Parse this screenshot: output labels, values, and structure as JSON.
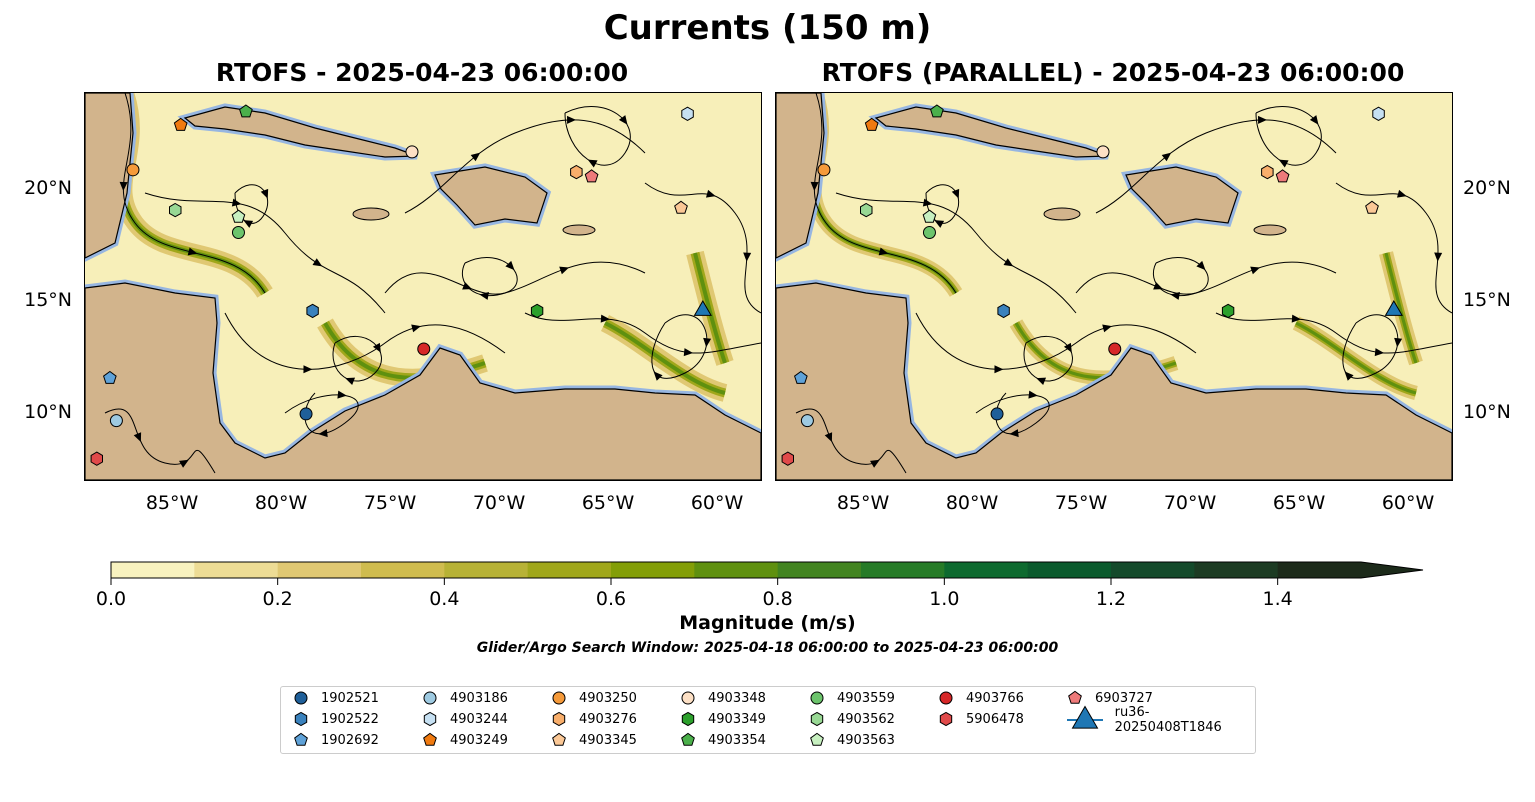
{
  "title": "Currents (150 m)",
  "panels": [
    {
      "title": "RTOFS - 2025-04-23 06:00:00"
    },
    {
      "title": "RTOFS (PARALLEL) - 2025-04-23 06:00:00"
    }
  ],
  "map": {
    "lon_range": [
      -89.04,
      -58.03
    ],
    "lat_range": [
      7.05,
      24.33
    ],
    "lon_ticks": [
      {
        "v": -85,
        "label": "85°W"
      },
      {
        "v": -80,
        "label": "80°W"
      },
      {
        "v": -75,
        "label": "75°W"
      },
      {
        "v": -70,
        "label": "70°W"
      },
      {
        "v": -65,
        "label": "65°W"
      },
      {
        "v": -60,
        "label": "60°W"
      }
    ],
    "lat_ticks": [
      {
        "v": 20,
        "label": "20°N"
      },
      {
        "v": 15,
        "label": "15°N"
      },
      {
        "v": 10,
        "label": "10°N"
      }
    ],
    "colors": {
      "ocean_fill": "#f7efb9",
      "land": "#d2b48c",
      "shelf": "#97b6e1"
    }
  },
  "colorbar": {
    "label": "Magnitude (m/s)",
    "min": 0,
    "max": 1.5,
    "ticks": [
      "0.0",
      "0.2",
      "0.4",
      "0.6",
      "0.8",
      "1.0",
      "1.2",
      "1.4"
    ],
    "colors": [
      "#f8f2bf",
      "#eddc95",
      "#e0c873",
      "#cfbc4f",
      "#b7b236",
      "#a0a71b",
      "#839e07",
      "#5f900f",
      "#428420",
      "#267b27",
      "#0d6a2f",
      "#0a5a2d",
      "#144a2b",
      "#1c3b23",
      "#1c2a1a"
    ]
  },
  "search_window": "Glider/Argo Search Window: 2025-04-18 06:00:00 to 2025-04-23 06:00:00",
  "legend": [
    {
      "label": "1902521",
      "shape": "circle",
      "color": "#1f5f99",
      "lon": -78.9,
      "lat": 10.0
    },
    {
      "label": "1902522",
      "shape": "hexagon",
      "color": "#3a82bd",
      "lon": -78.6,
      "lat": 14.6
    },
    {
      "label": "1902692",
      "shape": "pentagon",
      "color": "#5fa2d8",
      "lon": -87.9,
      "lat": 11.6
    },
    {
      "label": "4903186",
      "shape": "circle",
      "color": "#9ecae1",
      "lon": -87.6,
      "lat": 9.7
    },
    {
      "label": "4903244",
      "shape": "hexagon",
      "color": "#c6e0f2",
      "lon": -61.4,
      "lat": 23.4
    },
    {
      "label": "4903249",
      "shape": "pentagon",
      "color": "#f07a10",
      "lon": -84.65,
      "lat": 22.9
    },
    {
      "label": "4903250",
      "shape": "circle",
      "color": "#f59a3a",
      "lon": -86.84,
      "lat": 20.9
    },
    {
      "label": "4903276",
      "shape": "hexagon",
      "color": "#f8ae6b",
      "lon": -66.5,
      "lat": 20.8
    },
    {
      "label": "4903345",
      "shape": "pentagon",
      "color": "#fbc896",
      "lon": -61.7,
      "lat": 19.2
    },
    {
      "label": "4903348",
      "shape": "circle",
      "color": "#fde0c5",
      "lon": -74.04,
      "lat": 21.7
    },
    {
      "label": "4903349",
      "shape": "hexagon",
      "color": "#2ca02c",
      "lon": -68.3,
      "lat": 14.6
    },
    {
      "label": "4903354",
      "shape": "pentagon",
      "color": "#4bb04b",
      "lon": -81.66,
      "lat": 23.5
    },
    {
      "label": "4903559",
      "shape": "circle",
      "color": "#6cc46c",
      "lon": -82.0,
      "lat": 18.1
    },
    {
      "label": "4903562",
      "shape": "hexagon",
      "color": "#98d894",
      "lon": -84.9,
      "lat": 19.1
    },
    {
      "label": "4903563",
      "shape": "pentagon",
      "color": "#c7f0c0",
      "lon": -82.0,
      "lat": 18.8
    },
    {
      "label": "4903766",
      "shape": "circle",
      "color": "#d62728",
      "lon": -73.5,
      "lat": 12.9
    },
    {
      "label": "5906478",
      "shape": "hexagon",
      "color": "#e04a4a",
      "lon": -88.5,
      "lat": 8.0
    },
    {
      "label": "6903727",
      "shape": "pentagon",
      "color": "#ee7a7a",
      "lon": -65.8,
      "lat": 20.6
    },
    {
      "label": "ru36-20250408T1846",
      "shape": "triangle",
      "color": "#1f77b4",
      "lon": -60.7,
      "lat": 14.7
    }
  ]
}
